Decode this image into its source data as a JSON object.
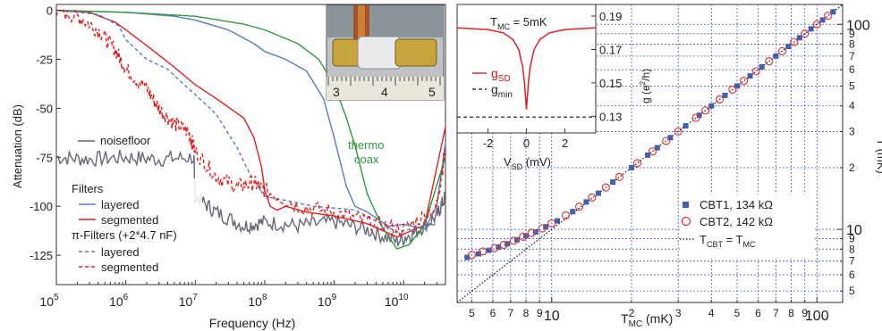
{
  "chart_data": [
    {
      "type": "line",
      "panel": "left",
      "xlabel": "Frequency (Hz)",
      "ylabel": "Attenuation (dB)",
      "xscale": "log",
      "xlim": [
        100000,
        40000000000
      ],
      "ylim": [
        -140,
        3
      ],
      "yticks": [
        {
          "value": 0,
          "label": "0"
        },
        {
          "value": -25,
          "label": "-25"
        },
        {
          "value": -50,
          "label": "-50"
        },
        {
          "value": -75,
          "label": "-75"
        },
        {
          "value": -100,
          "label": "-100"
        },
        {
          "value": -125,
          "label": "-125"
        }
      ],
      "xticks": [
        {
          "value": 100000,
          "base": "10",
          "exp": "5"
        },
        {
          "value": 1000000,
          "base": "10",
          "exp": "6"
        },
        {
          "value": 10000000,
          "base": "10",
          "exp": "7"
        },
        {
          "value": 100000000,
          "base": "10",
          "exp": "8"
        },
        {
          "value": 1000000000,
          "base": "10",
          "exp": "9"
        },
        {
          "value": 10000000000,
          "base": "10",
          "exp": "10"
        }
      ],
      "legend_title": "Filters",
      "legend_subtitle": "π-Filters (+2*4.7 nF)",
      "series": [
        {
          "name": "noisefloor",
          "color": "#666677",
          "dash": "solid",
          "noisy": true,
          "x": [
            100000,
            300000,
            1000000,
            3000000,
            9500000,
            10000000,
            20000000,
            50000000,
            100000000,
            300000000,
            1000000000,
            3000000000,
            8000000000,
            15000000000,
            30000000000,
            40000000000
          ],
          "y": [
            -75,
            -76,
            -75,
            -76,
            -75,
            -95,
            -103,
            -110,
            -108,
            -110,
            -108,
            -112,
            -118,
            -113,
            -105,
            -95
          ]
        },
        {
          "name": "layered",
          "color": "#5b78c4",
          "dash": "solid",
          "x": [
            100000,
            1000000,
            5000000,
            10000000,
            30000000,
            70000000,
            100000000,
            200000000,
            400000000,
            700000000,
            1000000000,
            1500000000,
            2000000000,
            3000000000,
            6000000000,
            10000000000,
            20000000000,
            30000000000,
            40000000000
          ],
          "y": [
            0,
            -1,
            -3,
            -5,
            -10,
            -17,
            -21,
            -25,
            -31,
            -45,
            -65,
            -90,
            -103,
            -105,
            -108,
            -110,
            -108,
            -102,
            -72
          ]
        },
        {
          "name": "segmented",
          "color": "#e02020",
          "dash": "solid",
          "x": [
            100000,
            300000,
            700000,
            1000000,
            2000000,
            5000000,
            10000000,
            20000000,
            50000000,
            70000000,
            90000000,
            100000000,
            120000000,
            150000000,
            200000000,
            400000000,
            1000000000,
            3000000000,
            8000000000,
            20000000000,
            40000000000
          ],
          "y": [
            0,
            -1,
            -6,
            -10,
            -18,
            -29,
            -38,
            -45,
            -55,
            -65,
            -80,
            -92,
            -100,
            -102,
            -100,
            -103,
            -105,
            -110,
            -114,
            -108,
            -60
          ]
        },
        {
          "name": "thermo coax",
          "color": "#2f9a3a",
          "dash": "solid",
          "x": [
            100000,
            1000000,
            10000000,
            50000000,
            100000000,
            300000000,
            600000000,
            1000000000,
            1500000000,
            2000000000,
            3000000000,
            5000000000,
            8000000000,
            12000000000,
            20000000000,
            40000000000
          ],
          "y": [
            0,
            -1,
            -3,
            -7,
            -10,
            -17,
            -25,
            -38,
            -55,
            -70,
            -90,
            -110,
            -125,
            -122,
            -110,
            -75
          ]
        },
        {
          "name": "layered",
          "color": "#5b78c4",
          "dash": "dashed",
          "x": [
            100000,
            400000,
            800000,
            1000000,
            2000000,
            4000000,
            6000000,
            10000000,
            20000000,
            40000000,
            60000000,
            80000000,
            100000000,
            200000000,
            500000000,
            2000000000,
            8000000000,
            30000000000
          ],
          "y": [
            0,
            -2,
            -8,
            -15,
            -25,
            -30,
            -36,
            -43,
            -53,
            -70,
            -83,
            -90,
            -95,
            -97,
            -100,
            -103,
            -112,
            -105
          ]
        },
        {
          "name": "segmented",
          "color": "#e02020",
          "dash": "dashed",
          "noisy": true,
          "x": [
            100000,
            200000,
            400000,
            700000,
            1000000,
            2000000,
            3000000,
            5000000,
            8000000,
            10000000,
            20000000,
            40000000,
            70000000,
            100000000,
            300000000,
            1000000000,
            3000000000,
            10000000000,
            30000000000,
            40000000000
          ],
          "y": [
            0,
            -3,
            -10,
            -20,
            -30,
            -40,
            -50,
            -58,
            -62,
            -72,
            -85,
            -90,
            -88,
            -92,
            -100,
            -103,
            -108,
            -112,
            -100,
            -70
          ]
        }
      ],
      "annotations": [
        "noisefloor",
        "thermo",
        "coax"
      ],
      "inset_photo": {
        "ruler_labels": [
          "3",
          "4",
          "5"
        ]
      }
    },
    {
      "type": "scatter",
      "panel": "right",
      "xlabel_main": "T",
      "xlabel_sub": "MC",
      "xlabel_unit": " (mK)",
      "ylabel": "T (mK)",
      "xscale": "log",
      "yscale": "log",
      "xlim": [
        4.4,
        125
      ],
      "ylim": [
        4.4,
        125
      ],
      "major_ticks": [
        {
          "value": 10,
          "label": "10"
        },
        {
          "value": 100,
          "label": "100"
        }
      ],
      "minor_ticks": [
        {
          "value": 5,
          "label": "5"
        },
        {
          "value": 6,
          "label": "6"
        },
        {
          "value": 7,
          "label": "7"
        },
        {
          "value": 8,
          "label": "8"
        },
        {
          "value": 9,
          "label": "9"
        },
        {
          "value": 20,
          "label": "2"
        },
        {
          "value": 30,
          "label": "3"
        },
        {
          "value": 40,
          "label": "4"
        },
        {
          "value": 50,
          "label": "5"
        },
        {
          "value": 60,
          "label": "6"
        },
        {
          "value": 70,
          "label": "7"
        },
        {
          "value": 80,
          "label": "8"
        },
        {
          "value": 90,
          "label": "9"
        }
      ],
      "grid": true,
      "legend": [
        {
          "label": "CBT1, 134 kΩ",
          "marker": "filled-square",
          "color": "#3f5fb0"
        },
        {
          "label": "CBT2, 142 kΩ",
          "marker": "open-circle",
          "color": "#e03a3a"
        },
        {
          "main": "T",
          "sub": "CBT",
          "rest": " = T",
          "sub2": "MC",
          "marker": "dotted-line",
          "color": "#111111"
        }
      ],
      "series": [
        {
          "name": "CBT1, 134 kΩ",
          "x": [
            4.8,
            5.3,
            5.8,
            6.3,
            6.8,
            7.4,
            8.0,
            8.7,
            9.5,
            10.5,
            12,
            13.5,
            15,
            17,
            20,
            23,
            25,
            28,
            32,
            36,
            40,
            45,
            50,
            56,
            62,
            70,
            78,
            86,
            95,
            105,
            115
          ],
          "y": [
            7.3,
            7.6,
            7.9,
            8.2,
            8.5,
            8.9,
            9.3,
            9.7,
            10.3,
            11.0,
            12.2,
            13.6,
            15,
            17,
            20,
            23,
            25,
            28,
            32,
            36,
            40,
            45,
            50,
            56,
            62,
            70,
            78,
            86,
            95,
            105,
            115
          ]
        },
        {
          "name": "CBT2, 142 kΩ",
          "x": [
            5.0,
            5.5,
            6.1,
            6.6,
            7.2,
            7.8,
            8.4,
            9.2,
            10,
            11.3,
            12.7,
            14.2,
            16,
            18,
            21,
            24,
            27,
            30,
            35,
            38,
            43,
            48,
            53,
            59,
            66,
            74,
            82,
            90,
            100,
            110
          ],
          "y": [
            7.5,
            7.8,
            8.1,
            8.4,
            8.8,
            9.2,
            9.6,
            10.1,
            10.7,
            11.7,
            12.9,
            14.3,
            16,
            18,
            21,
            24,
            27,
            30,
            35,
            38,
            43,
            48,
            53,
            59,
            66,
            74,
            82,
            90,
            100,
            110
          ]
        },
        {
          "name": "T = T line",
          "x": [
            4.4,
            125
          ],
          "y": [
            4.4,
            125
          ]
        }
      ]
    },
    {
      "type": "line",
      "panel": "inset",
      "title_main": "T",
      "title_sub": "MC",
      "title_rest": " = 5mK",
      "xlabel_main": "V",
      "xlabel_sub": "SD",
      "xlabel_unit": " (mV)",
      "ylabel_main": "g (e",
      "ylabel_sup": "2",
      "ylabel_rest": "/h)",
      "xlim": [
        -3.6,
        3.6
      ],
      "ylim": [
        0.12,
        0.197
      ],
      "xticks": [
        {
          "value": -2,
          "label": "-2"
        },
        {
          "value": 0,
          "label": "0"
        },
        {
          "value": 2,
          "label": "2"
        }
      ],
      "yticks": [
        {
          "value": 0.13,
          "label": "0.13"
        },
        {
          "value": 0.15,
          "label": "0.15"
        },
        {
          "value": 0.17,
          "label": "0.17"
        },
        {
          "value": 0.19,
          "label": "0.19"
        }
      ],
      "legend": [
        {
          "main": "g",
          "sub": "SD",
          "color": "#e02020",
          "dash": "solid"
        },
        {
          "main": "g",
          "sub": "min",
          "color": "#111111",
          "dash": "dashed"
        }
      ],
      "series": [
        {
          "name": "g_SD",
          "x": [
            -3.6,
            -2,
            -1.2,
            -0.7,
            -0.4,
            -0.2,
            -0.1,
            0,
            0.1,
            0.2,
            0.4,
            0.7,
            1.2,
            2,
            3.6
          ],
          "y": [
            0.183,
            0.182,
            0.18,
            0.176,
            0.17,
            0.16,
            0.15,
            0.134,
            0.15,
            0.16,
            0.17,
            0.176,
            0.18,
            0.182,
            0.183
          ]
        },
        {
          "name": "g_min",
          "x": [
            -3.6,
            3.6
          ],
          "y": [
            0.1295,
            0.1295
          ]
        }
      ]
    }
  ]
}
